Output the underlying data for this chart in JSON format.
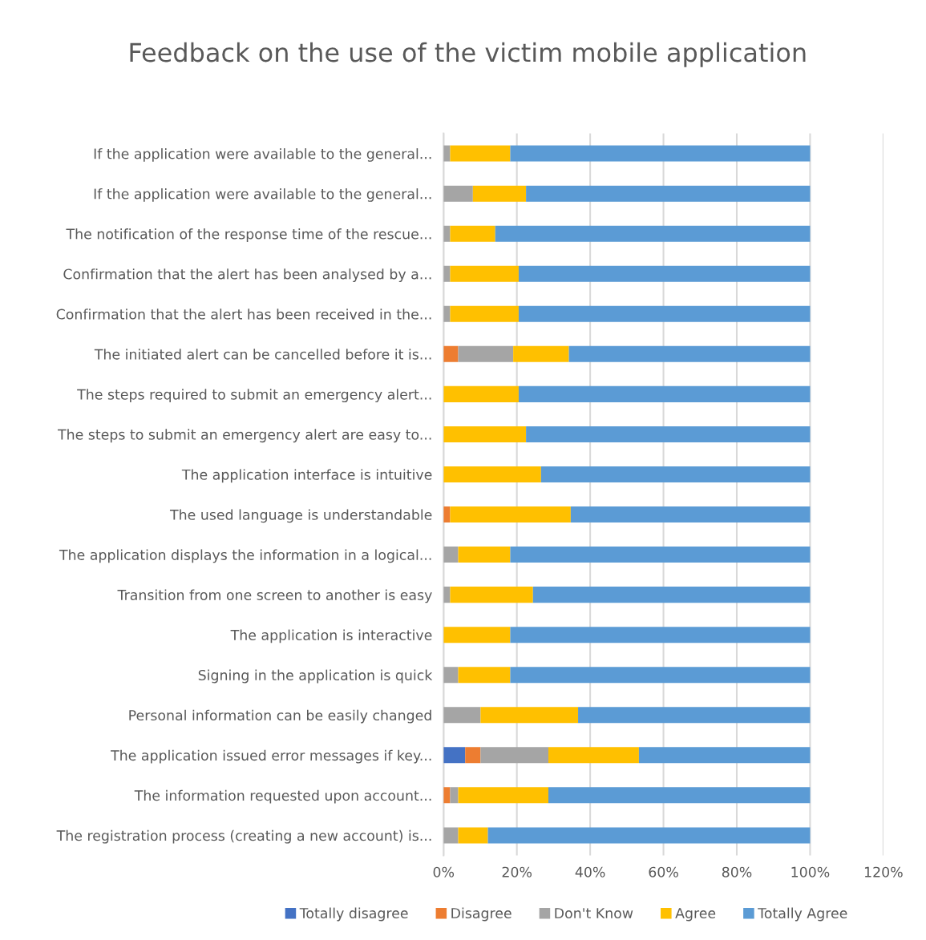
{
  "chart_data": {
    "type": "bar",
    "orientation": "horizontal",
    "stacked": true,
    "title": "Feedback on the use of the victim mobile application",
    "categories": [
      "If the application were available to the general...",
      "If the application were available to the general...",
      "The notification of the response time of the rescue...",
      "Confirmation that the alert has been analysed by a...",
      "Confirmation that the alert has been received in the...",
      "The initiated alert can be cancelled before it is...",
      "The steps required to submit an emergency alert...",
      "The steps to submit an emergency alert are easy to...",
      "The application interface is intuitive",
      "The used language is understandable",
      "The application displays the information in a logical...",
      "Transition from one screen to another is easy",
      "The application is interactive",
      "Signing in the application is quick",
      "Personal information can be easily changed",
      "The application issued error messages if key...",
      "The information requested upon account...",
      "The registration process (creating a new account) is..."
    ],
    "series": [
      {
        "name": "Totally disagree",
        "color": "#4472c4",
        "values": [
          0,
          0,
          0,
          0,
          0,
          0,
          0,
          0,
          0,
          0,
          0,
          0,
          0,
          0,
          0,
          5.9,
          0,
          0
        ]
      },
      {
        "name": "Disagree",
        "color": "#ed7d31",
        "values": [
          0,
          0,
          0,
          0,
          0,
          4.0,
          0,
          0,
          0,
          1.8,
          0,
          0,
          0,
          0,
          0,
          4.2,
          1.8,
          0
        ]
      },
      {
        "name": "Don't Know",
        "color": "#a5a5a5",
        "values": [
          1.8,
          8.0,
          1.8,
          1.8,
          1.8,
          15.0,
          0,
          0,
          0,
          0,
          4.0,
          1.8,
          0,
          4.0,
          10.1,
          18.5,
          2.2,
          4.0
        ]
      },
      {
        "name": "Agree",
        "color": "#ffc000",
        "values": [
          16.4,
          14.5,
          12.3,
          18.7,
          18.7,
          15.2,
          20.5,
          22.5,
          26.6,
          32.9,
          14.2,
          22.6,
          18.2,
          14.2,
          26.6,
          24.7,
          24.6,
          8.1
        ]
      },
      {
        "name": "Totally Agree",
        "color": "#5b9bd5",
        "values": [
          81.8,
          77.5,
          85.9,
          79.5,
          79.5,
          65.8,
          79.5,
          77.5,
          73.4,
          65.3,
          81.8,
          75.6,
          81.8,
          81.8,
          63.3,
          46.7,
          71.4,
          87.9
        ]
      }
    ],
    "xlim": [
      0,
      120
    ],
    "xticks": [
      {
        "value": 0,
        "label": "0%"
      },
      {
        "value": 20,
        "label": "20%"
      },
      {
        "value": 40,
        "label": "40%"
      },
      {
        "value": 60,
        "label": "60%"
      },
      {
        "value": 80,
        "label": "80%"
      },
      {
        "value": 100,
        "label": "100%"
      },
      {
        "value": 120,
        "label": "120%"
      }
    ],
    "grid": "x",
    "legend": "bottom"
  }
}
